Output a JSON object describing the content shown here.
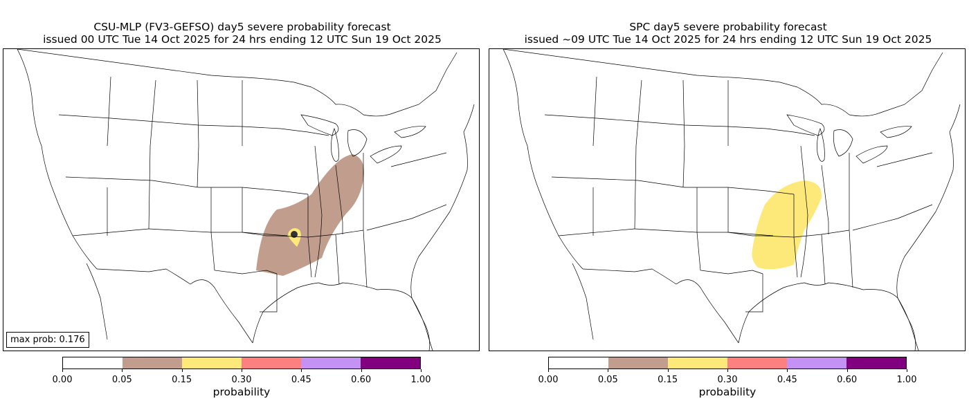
{
  "panels": [
    {
      "title_line1": "CSU-MLP (FV3-GEFSO) day5 severe probability forecast",
      "title_line2": "issued 00 UTC Tue 14 Oct 2025 for 24 hrs ending 12 UTC Sun 19 Oct 2025",
      "max_prob_label": "max prob: 0.176",
      "overlay": "csu"
    },
    {
      "title_line1": "SPC day5 severe probability forecast",
      "title_line2": "issued ~09 UTC Tue 14 Oct 2025 for 24 hrs ending 12 UTC Sun 19 Oct 2025",
      "overlay": "spc"
    }
  ],
  "colorbar": {
    "label": "probability",
    "tick_labels": [
      "0.00",
      "0.05",
      "0.15",
      "0.30",
      "0.45",
      "0.60",
      "1.00"
    ],
    "colors": [
      "#ffffff",
      "#c09d8c",
      "#fde97a",
      "#fc8080",
      "#c491f5",
      "#800080"
    ]
  }
}
